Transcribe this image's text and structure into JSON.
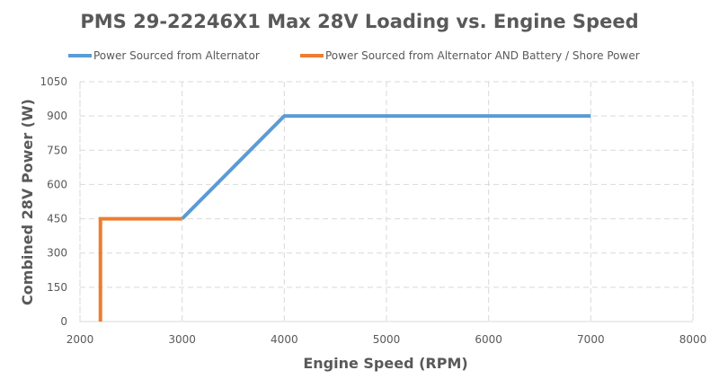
{
  "chart_data": {
    "type": "line",
    "title": "PMS 29-22246X1 Max 28V Loading vs. Engine Speed",
    "xlabel": "Engine Speed (RPM)",
    "ylabel": "Combined 28V Power (W)",
    "xlim": [
      2000,
      8000
    ],
    "ylim": [
      0,
      1050
    ],
    "xticks": [
      2000,
      3000,
      4000,
      5000,
      6000,
      7000,
      8000
    ],
    "yticks": [
      0,
      150,
      300,
      450,
      600,
      750,
      900,
      1050
    ],
    "grid": true,
    "legend_position": "top",
    "series": [
      {
        "name": "Power Sourced from Alternator",
        "color": "#5b9bd5",
        "points": [
          [
            3000,
            450
          ],
          [
            4000,
            900
          ],
          [
            7000,
            900
          ]
        ]
      },
      {
        "name": "Power Sourced from Alternator AND Battery / Shore Power",
        "color": "#ed7d31",
        "points": [
          [
            2200,
            0
          ],
          [
            2200,
            450
          ],
          [
            3000,
            450
          ]
        ]
      }
    ]
  }
}
